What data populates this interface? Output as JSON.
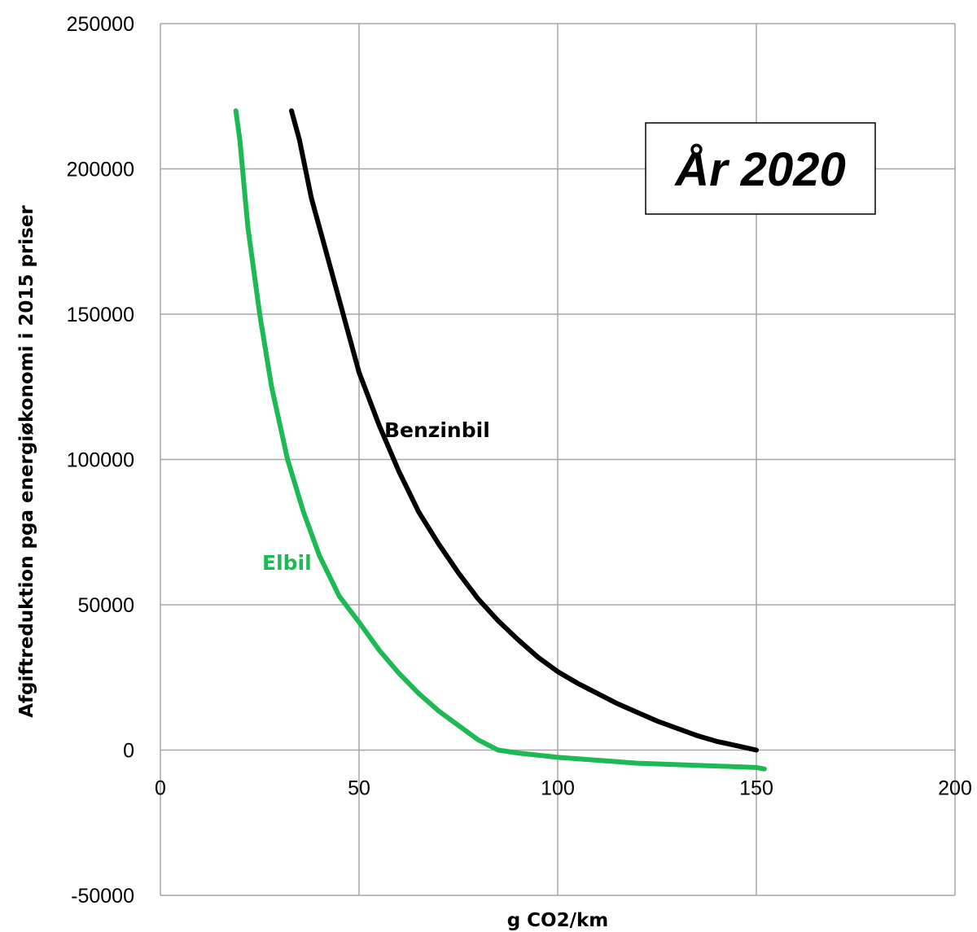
{
  "chart_data": {
    "type": "line",
    "title": "",
    "xlabel": "g CO2/km",
    "ylabel": "Afgiftreduktion pga energiøkonomi i 2015 priser",
    "xlim": [
      0,
      200
    ],
    "ylim": [
      -50000,
      250000
    ],
    "x_ticks": [
      "0",
      "50",
      "100",
      "150",
      "200"
    ],
    "y_ticks": [
      "250000",
      "200000",
      "150000",
      "100000",
      "50000",
      "0",
      "-50000"
    ],
    "grid": true,
    "annotation": "År 2020",
    "series": [
      {
        "name": "Benzinbil",
        "color": "#000000",
        "x": [
          33,
          35,
          38,
          42,
          46,
          50,
          55,
          60,
          65,
          70,
          75,
          80,
          85,
          90,
          95,
          100,
          105,
          110,
          115,
          120,
          125,
          130,
          135,
          140,
          145,
          150
        ],
        "y": [
          220000,
          210000,
          190000,
          170000,
          150000,
          130000,
          112000,
          96000,
          82000,
          71000,
          61000,
          52000,
          44500,
          38000,
          32000,
          27000,
          23000,
          19500,
          16000,
          13000,
          10000,
          7500,
          5000,
          3000,
          1500,
          0
        ]
      },
      {
        "name": "Elbil",
        "color": "#1db954",
        "x": [
          19,
          20,
          22,
          25,
          28,
          32,
          36,
          40,
          45,
          50,
          55,
          60,
          65,
          70,
          75,
          80,
          85,
          90,
          100,
          110,
          120,
          130,
          140,
          150,
          152
        ],
        "y": [
          220000,
          210000,
          180000,
          150000,
          125000,
          100000,
          82000,
          67000,
          53000,
          44000,
          34500,
          26500,
          19500,
          13500,
          8500,
          3500,
          0,
          -1000,
          -2500,
          -3500,
          -4500,
          -5000,
          -5500,
          -6000,
          -6500
        ]
      }
    ]
  }
}
